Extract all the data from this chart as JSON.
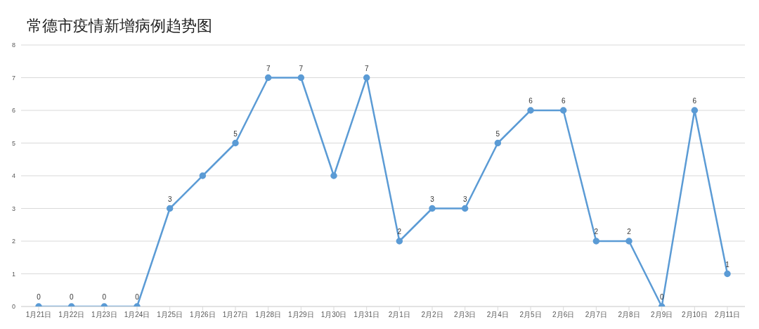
{
  "chart_data": {
    "type": "line",
    "title": "常德市疫情新增病例趋势图",
    "categories": [
      "1月21日",
      "1月22日",
      "1月23日",
      "1月24日",
      "1月25日",
      "1月26日",
      "1月27日",
      "1月28日",
      "1月29日",
      "1月30日",
      "1月31日",
      "2月1日",
      "2月2日",
      "2月3日",
      "2月4日",
      "2月5日",
      "2月6日",
      "2月7日",
      "2月8日",
      "2月9日",
      "2月10日",
      "2月11日"
    ],
    "series": [
      {
        "color": "#5b9bd5",
        "values": [
          0,
          0,
          0,
          0,
          3,
          4,
          5,
          7,
          7,
          4,
          7,
          2,
          3,
          3,
          5,
          6,
          6,
          2,
          2,
          0,
          6,
          1
        ],
        "value_labels": [
          "0",
          "0",
          "0",
          "0",
          "3",
          null,
          "5",
          "7",
          "7",
          null,
          "7",
          "2",
          "3",
          "3",
          "5",
          "6",
          "6",
          "2",
          "2",
          "0",
          "6",
          "1"
        ]
      }
    ],
    "ylim": [
      0,
      8
    ],
    "yticks": [
      0,
      1,
      2,
      3,
      4,
      5,
      6,
      7,
      8
    ],
    "grid": "y",
    "marker": "circle",
    "line_style": "solid"
  }
}
